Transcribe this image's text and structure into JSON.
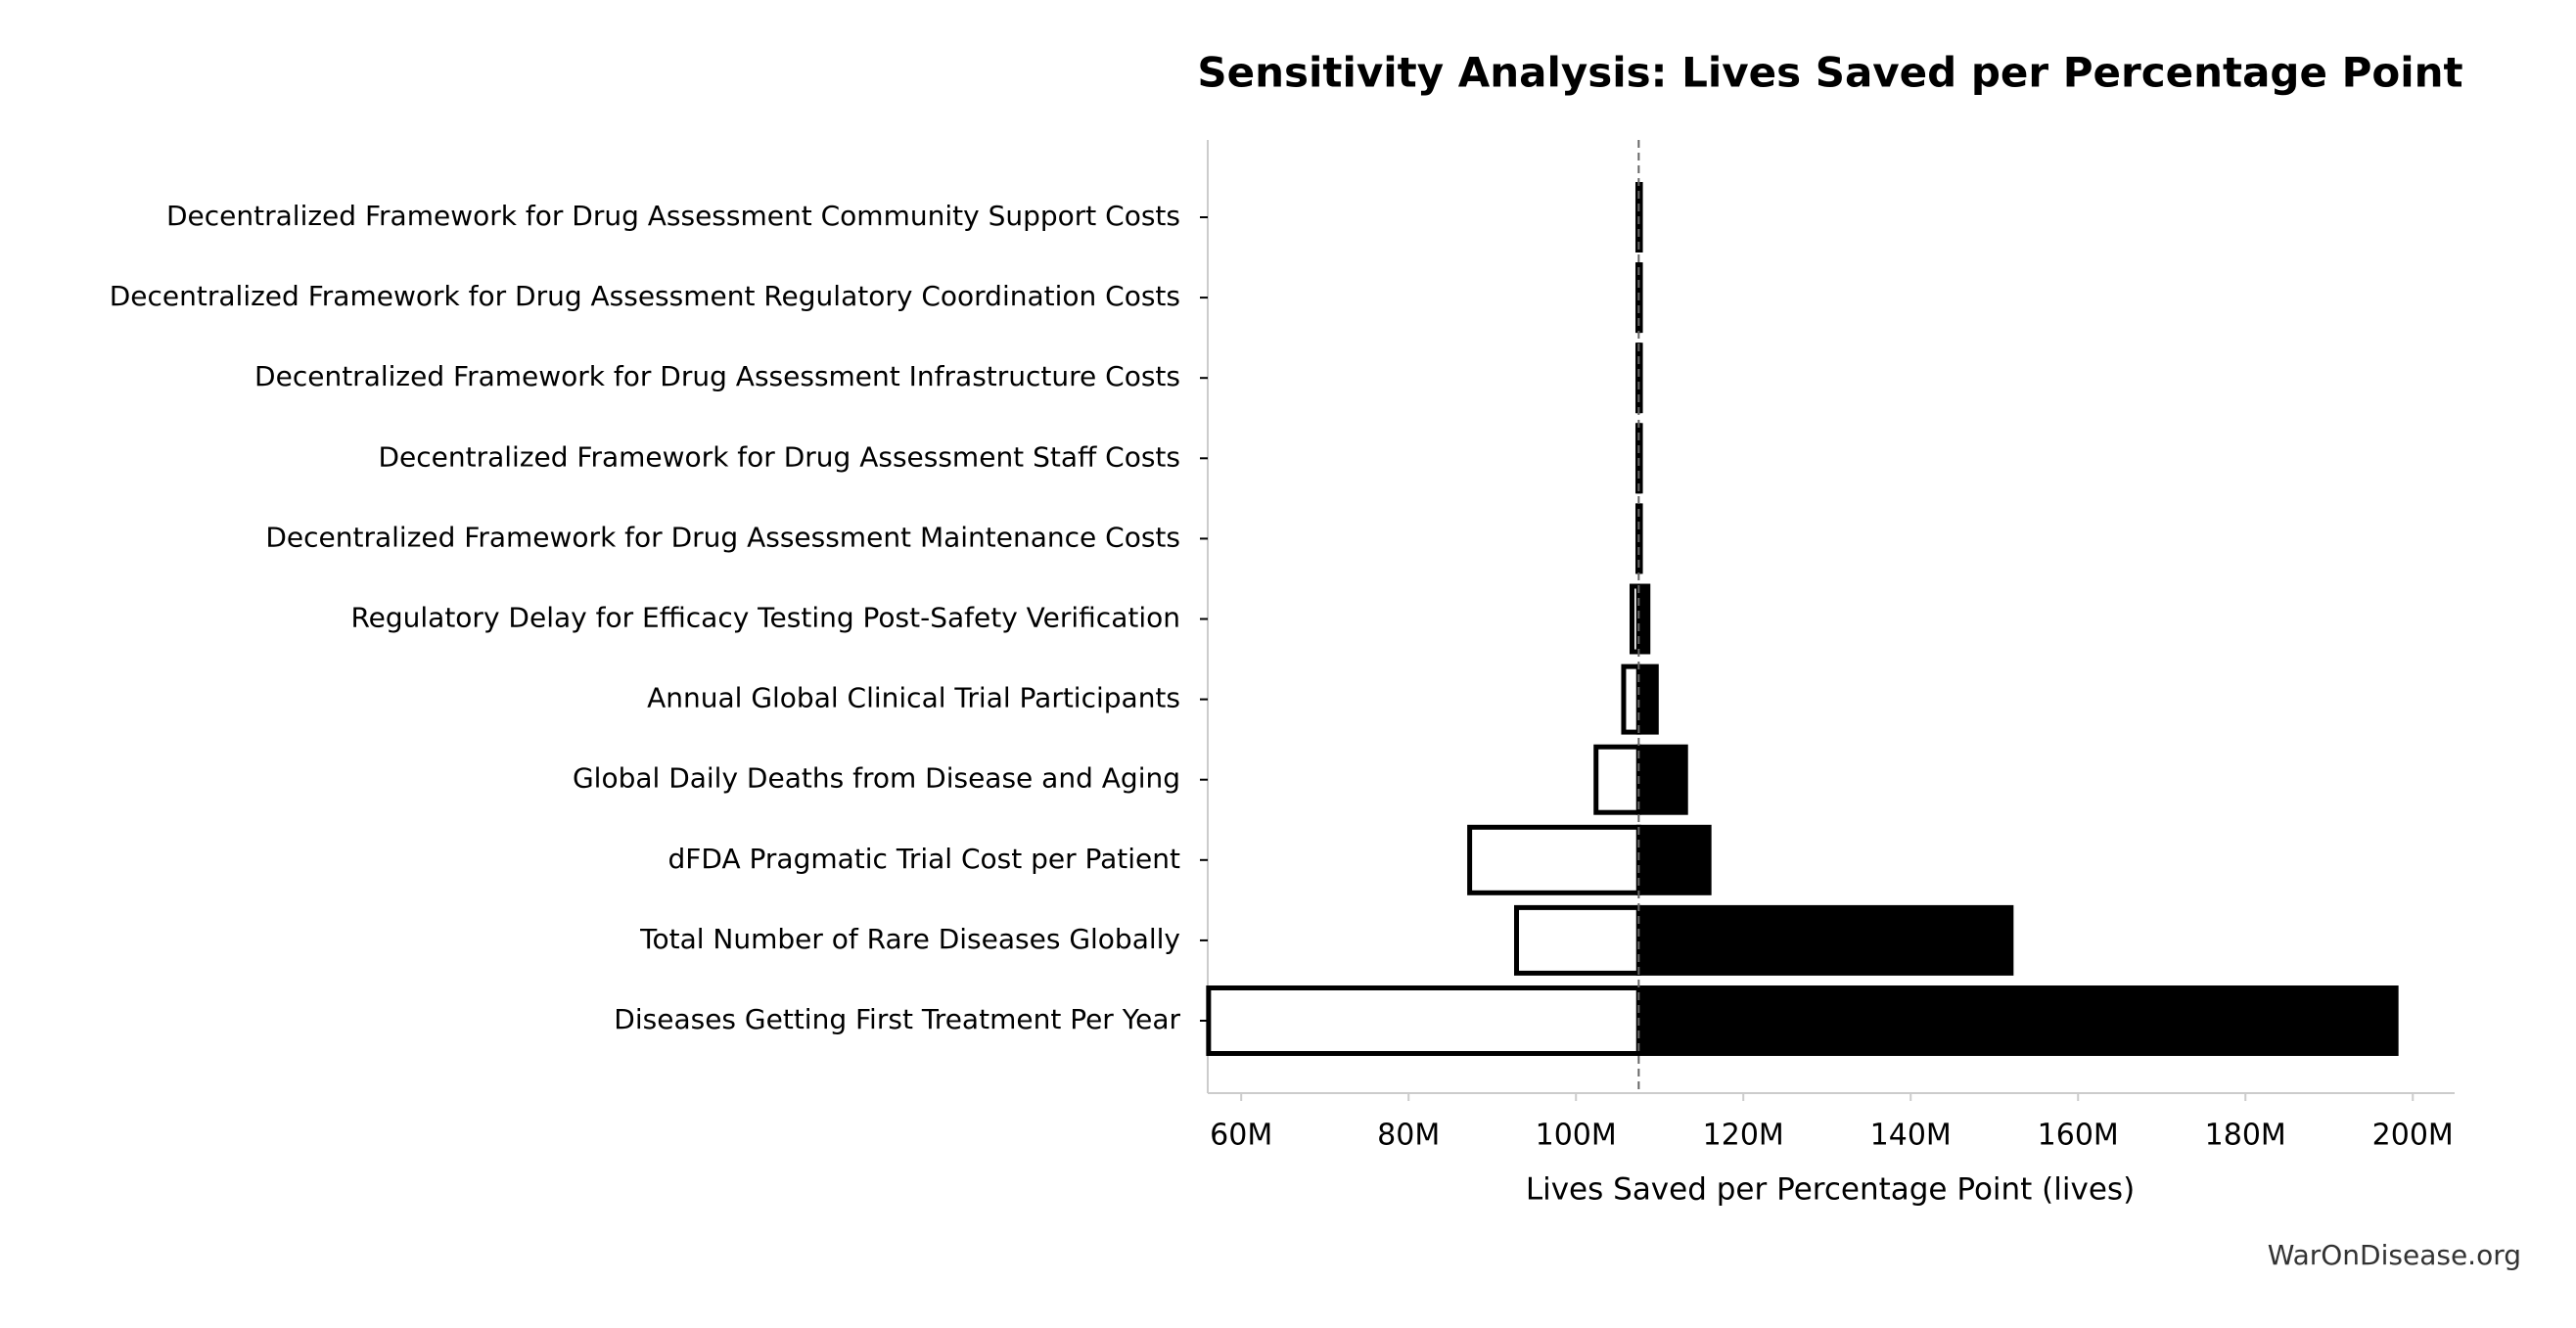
{
  "chart_data": {
    "type": "tornado",
    "title": "Sensitivity Analysis: Lives Saved per Percentage Point",
    "x_label": "Lives Saved per Percentage Point (lives)",
    "footer": "WarOnDisease.org",
    "categories": [
      "Decentralized Framework for Drug Assessment Community Support Costs",
      "Decentralized Framework for Drug Assessment Regulatory Coordination Costs",
      "Decentralized Framework for Drug Assessment Infrastructure Costs",
      "Decentralized Framework for Drug Assessment Staff Costs",
      "Decentralized Framework for Drug Assessment Maintenance Costs",
      "Regulatory Delay for Efficacy Testing Post-Safety Verification",
      "Annual Global Clinical Trial Participants",
      "Global Daily Deaths from Disease and Aging",
      "dFDA Pragmatic Trial Cost per Patient",
      "Total Number of Rare Diseases Globally",
      "Diseases Getting First Treatment Per Year"
    ],
    "baseline": 107500000,
    "low_values": [
      107400000,
      107400000,
      107400000,
      107400000,
      107400000,
      106700000,
      105700000,
      102400000,
      87300000,
      92900000,
      56100000
    ],
    "high_values": [
      107700000,
      107700000,
      107700000,
      107700000,
      107700000,
      108600000,
      109600000,
      113100000,
      115900000,
      152000000,
      198000000
    ],
    "low_color": "#ffffff",
    "high_color": "#000000",
    "xlim": [
      56000000,
      205000000
    ],
    "xticks": [
      {
        "value": 60000000,
        "label": "60M"
      },
      {
        "value": 80000000,
        "label": "80M"
      },
      {
        "value": 100000000,
        "label": "100M"
      },
      {
        "value": 120000000,
        "label": "120M"
      },
      {
        "value": 140000000,
        "label": "140M"
      },
      {
        "value": 160000000,
        "label": "160M"
      },
      {
        "value": 180000000,
        "label": "180M"
      },
      {
        "value": 200000000,
        "label": "200M"
      }
    ]
  }
}
